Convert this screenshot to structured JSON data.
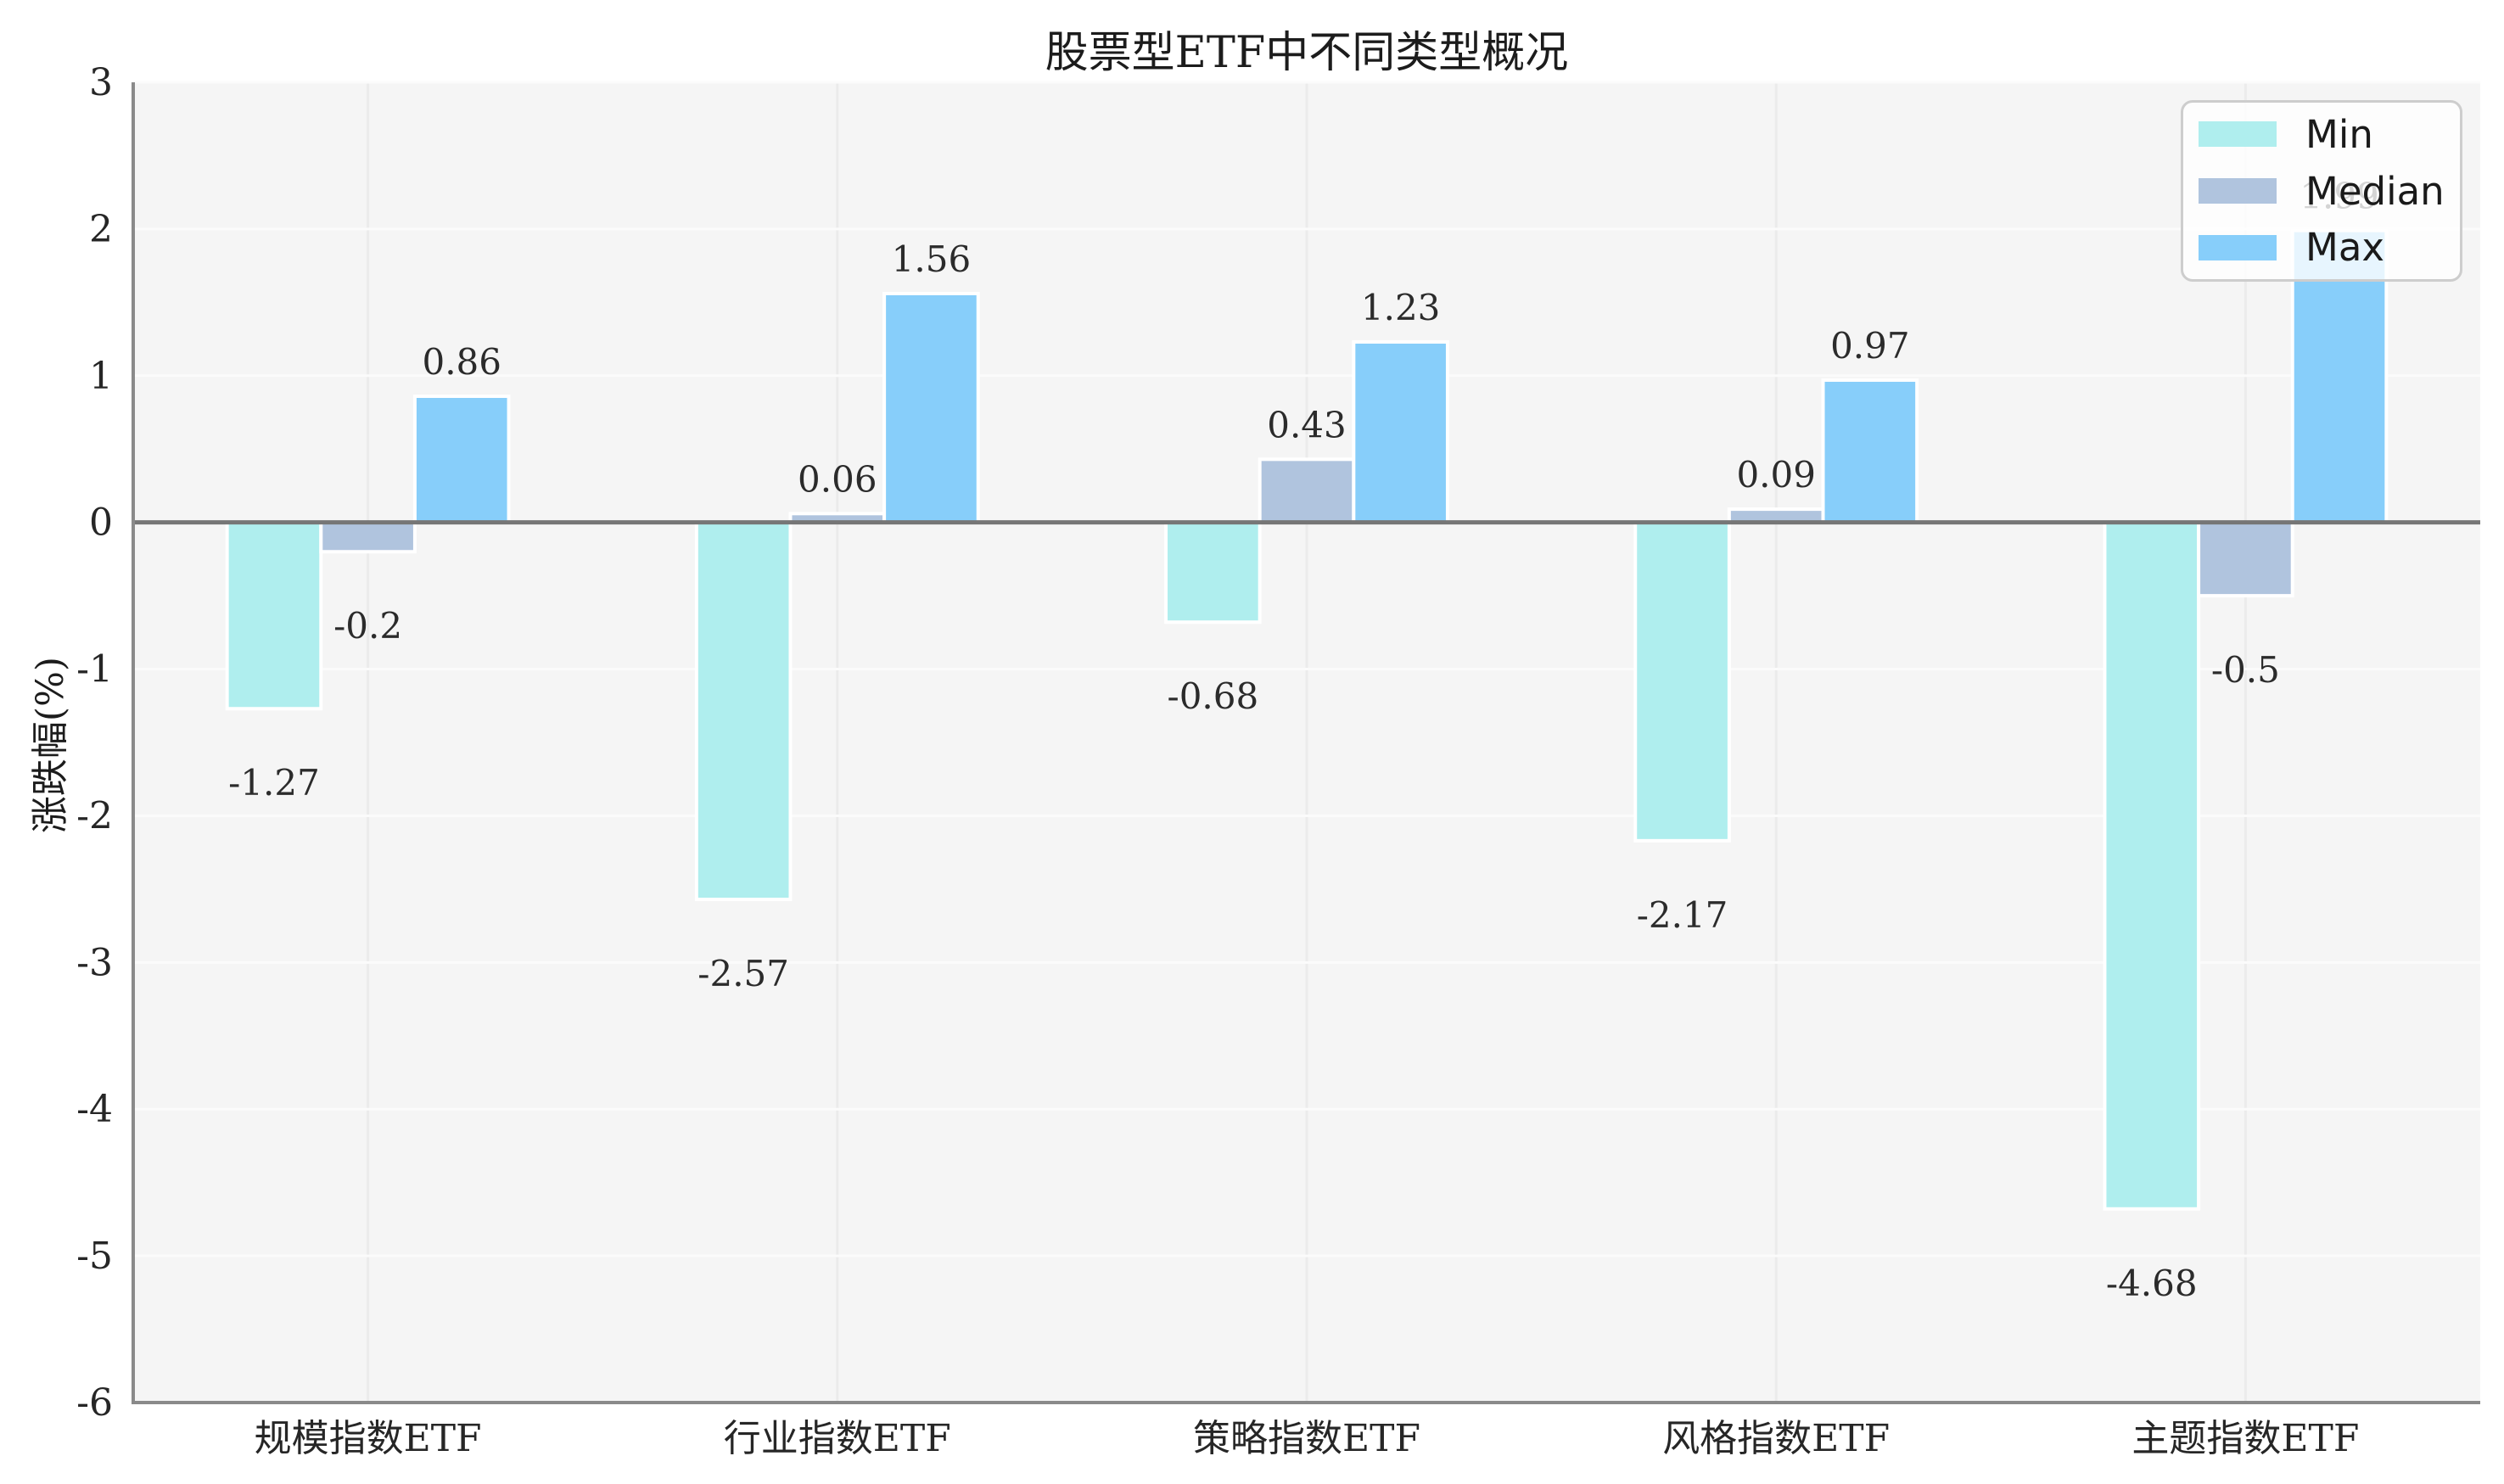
{
  "title": "股票型ETF中不同类型概况",
  "chart_data": {
    "type": "bar",
    "title": "股票型ETF中不同类型概况",
    "xlabel": "",
    "ylabel": "涨跌幅(%)",
    "ylim": [
      -6,
      3
    ],
    "yticks": [
      3,
      2,
      1,
      0,
      -1,
      -2,
      -3,
      -4,
      -5,
      -6
    ],
    "grid": true,
    "plot_background": "#f5f5f5",
    "legend_position": "upper right",
    "legend_labels": [
      "Min",
      "Median",
      "Max"
    ],
    "categories": [
      "规模指数ETF",
      "行业指数ETF",
      "策略指数ETF",
      "风格指数ETF",
      "主题指数ETF"
    ],
    "series": [
      {
        "name": "Min",
        "color": "#AFEEEE",
        "values": [
          -1.27,
          -2.57,
          -0.68,
          -2.17,
          -4.68
        ]
      },
      {
        "name": "Median",
        "color": "#B0C4DE",
        "values": [
          -0.2,
          0.06,
          0.43,
          0.09,
          -0.5
        ]
      },
      {
        "name": "Max",
        "color": "#87CEFA",
        "values": [
          0.86,
          1.56,
          1.23,
          0.97,
          1.99
        ]
      }
    ],
    "bar_value_labels": {
      "Min": [
        "-1.27",
        "-2.57",
        "-0.68",
        "-2.17",
        "-4.68"
      ],
      "Median": [
        "-0.2",
        "0.06",
        "0.43",
        "0.09",
        "-0.5"
      ],
      "Max": [
        "0.86",
        "1.56",
        "1.23",
        "0.97",
        "1.99"
      ]
    },
    "colors": {
      "min_bar": "#AFEEEE",
      "median_bar": "#B0C4DE",
      "max_bar": "#87CEFA",
      "zero_line": "#767676",
      "spine": "#8a8a8a",
      "grid_h": "#fbfbfb",
      "grid_v": "#ebebeb",
      "text": "#262626"
    }
  }
}
